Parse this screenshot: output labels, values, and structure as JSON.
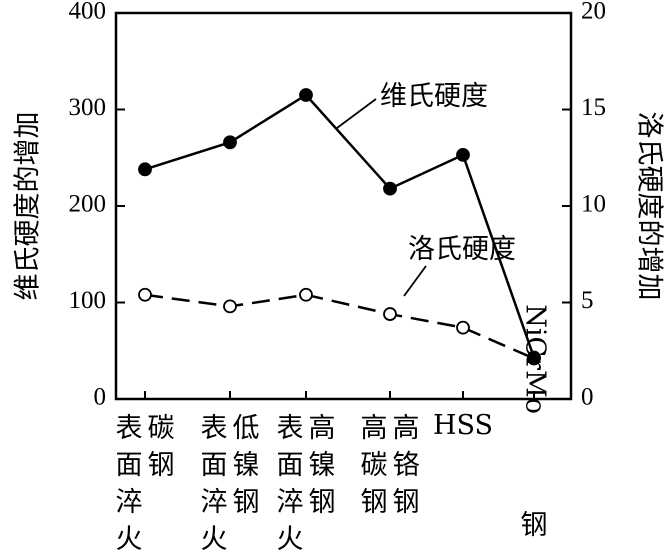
{
  "chart_data": {
    "type": "line",
    "categories": [
      "表面淬火碳钢",
      "表面淬火低镍钢",
      "表面淬火高镍钢",
      "高碳高铬钢",
      "HSS",
      "NiCrMo钢"
    ],
    "category_label_columns": [
      [
        "表面淬火",
        "碳钢"
      ],
      [
        "表面淬火",
        "低镍钢"
      ],
      [
        "表面淬火",
        "高镍钢"
      ],
      [
        "高碳钢",
        "高铬钢"
      ],
      [
        "HSS"
      ],
      [
        "NiCrMo钢"
      ]
    ],
    "series": [
      {
        "name": "维氏硬度",
        "axis": "left",
        "style": "solid-filled",
        "values": [
          238,
          266,
          315,
          218,
          253,
          43
        ]
      },
      {
        "name": "洛氏硬度",
        "axis": "right",
        "style": "dashed-open",
        "values": [
          5.4,
          4.8,
          5.4,
          4.4,
          3.7,
          2.1
        ]
      }
    ],
    "ylabel": "维氏硬度的增加",
    "y2label": "洛氏硬度的增加",
    "ylim": [
      0,
      400
    ],
    "y2lim": [
      0,
      20
    ],
    "yticks": [
      0,
      100,
      200,
      300,
      400
    ],
    "y2ticks": [
      0,
      5,
      10,
      15,
      20
    ],
    "grid": false
  }
}
